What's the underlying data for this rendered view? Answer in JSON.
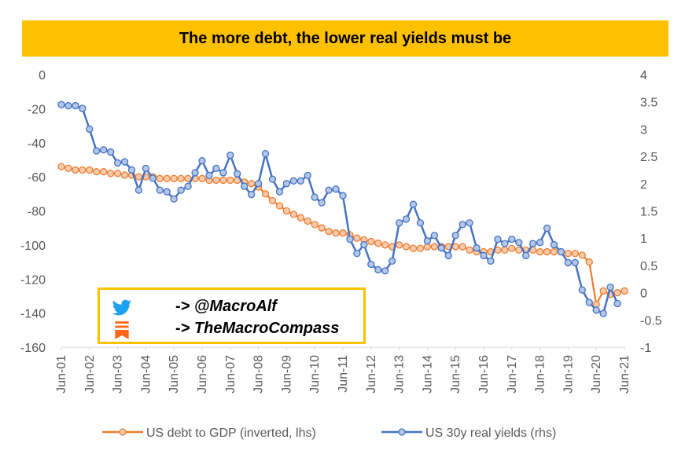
{
  "title": "The more debt, the lower real yields must be",
  "social": {
    "twitter_handle": "-> @MacroAlf",
    "substack_handle": "-> TheMacroCompass",
    "twitter_icon": "twitter-bird-icon",
    "substack_icon": "substack-bookmark-icon",
    "twitter_color": "#1DA1F2",
    "substack_color": "#FF6719"
  },
  "chart_data": {
    "type": "line",
    "title": "The more debt, the lower real yields must be",
    "x_tick_labels": [
      "Jun-01",
      "Jun-02",
      "Jun-03",
      "Jun-04",
      "Jun-05",
      "Jun-06",
      "Jun-07",
      "Jun-08",
      "Jun-09",
      "Jun-10",
      "Jun-11",
      "Jun-12",
      "Jun-13",
      "Jun-14",
      "Jun-15",
      "Jun-16",
      "Jun-17",
      "Jun-18",
      "Jun-19",
      "Jun-20",
      "Jun-21"
    ],
    "y_left": {
      "min": -160,
      "max": 0,
      "step": 20,
      "ticks": [
        "0",
        "-20",
        "-40",
        "-60",
        "-80",
        "-100",
        "-120",
        "-140",
        "-160"
      ]
    },
    "y_right": {
      "min": -1,
      "max": 4,
      "step": 0.5,
      "ticks": [
        "4",
        "3.5",
        "3",
        "2.5",
        "2",
        "1.5",
        "1",
        "0.5",
        "0",
        "-0.5",
        "-1"
      ]
    },
    "legend_position": "bottom",
    "grid": false,
    "series": [
      {
        "name": "US debt to GDP (inverted, lhs)",
        "axis": "left",
        "color": "#ED7D31",
        "marker_fill": "#F8CBAD",
        "points": [
          [
            "2001-06",
            -54
          ],
          [
            "2001-09",
            -55
          ],
          [
            "2001-12",
            -56
          ],
          [
            "2002-03",
            -56
          ],
          [
            "2002-06",
            -56
          ],
          [
            "2002-09",
            -57
          ],
          [
            "2002-12",
            -57
          ],
          [
            "2003-03",
            -58
          ],
          [
            "2003-06",
            -58
          ],
          [
            "2003-09",
            -59
          ],
          [
            "2003-12",
            -59
          ],
          [
            "2004-03",
            -60
          ],
          [
            "2004-06",
            -60
          ],
          [
            "2004-09",
            -60
          ],
          [
            "2004-12",
            -61
          ],
          [
            "2005-03",
            -61
          ],
          [
            "2005-06",
            -61
          ],
          [
            "2005-09",
            -61
          ],
          [
            "2005-12",
            -61
          ],
          [
            "2006-03",
            -61
          ],
          [
            "2006-06",
            -61
          ],
          [
            "2006-09",
            -62
          ],
          [
            "2006-12",
            -62
          ],
          [
            "2007-03",
            -62
          ],
          [
            "2007-06",
            -62
          ],
          [
            "2007-09",
            -62
          ],
          [
            "2007-12",
            -63
          ],
          [
            "2008-03",
            -64
          ],
          [
            "2008-06",
            -66
          ],
          [
            "2008-09",
            -70
          ],
          [
            "2008-12",
            -74
          ],
          [
            "2009-03",
            -77
          ],
          [
            "2009-06",
            -80
          ],
          [
            "2009-09",
            -82
          ],
          [
            "2009-12",
            -84
          ],
          [
            "2010-03",
            -86
          ],
          [
            "2010-06",
            -88
          ],
          [
            "2010-09",
            -90
          ],
          [
            "2010-12",
            -92
          ],
          [
            "2011-03",
            -93
          ],
          [
            "2011-06",
            -93
          ],
          [
            "2011-09",
            -94
          ],
          [
            "2011-12",
            -96
          ],
          [
            "2012-03",
            -97
          ],
          [
            "2012-06",
            -98
          ],
          [
            "2012-09",
            -99
          ],
          [
            "2012-12",
            -100
          ],
          [
            "2013-03",
            -101
          ],
          [
            "2013-06",
            -100
          ],
          [
            "2013-09",
            -101
          ],
          [
            "2013-12",
            -102
          ],
          [
            "2014-03",
            -102
          ],
          [
            "2014-06",
            -101
          ],
          [
            "2014-09",
            -101
          ],
          [
            "2014-12",
            -101
          ],
          [
            "2015-03",
            -101
          ],
          [
            "2015-06",
            -101
          ],
          [
            "2015-09",
            -101
          ],
          [
            "2015-12",
            -103
          ],
          [
            "2016-03",
            -104
          ],
          [
            "2016-06",
            -104
          ],
          [
            "2016-09",
            -104
          ],
          [
            "2016-12",
            -103
          ],
          [
            "2017-03",
            -103
          ],
          [
            "2017-06",
            -102
          ],
          [
            "2017-09",
            -103
          ],
          [
            "2017-12",
            -103
          ],
          [
            "2018-03",
            -103
          ],
          [
            "2018-06",
            -104
          ],
          [
            "2018-09",
            -104
          ],
          [
            "2018-12",
            -104
          ],
          [
            "2019-03",
            -104
          ],
          [
            "2019-06",
            -105
          ],
          [
            "2019-09",
            -105
          ],
          [
            "2019-12",
            -106
          ],
          [
            "2020-03",
            -110
          ],
          [
            "2020-06",
            -135
          ],
          [
            "2020-09",
            -127
          ],
          [
            "2020-12",
            -129
          ],
          [
            "2021-03",
            -128
          ],
          [
            "2021-06",
            -127
          ]
        ]
      },
      {
        "name": "US 30y real yields (rhs)",
        "axis": "right",
        "color": "#4472C4",
        "marker_fill": "#B4C7E7",
        "points": [
          [
            "2001-06",
            3.45
          ],
          [
            "2001-09",
            3.43
          ],
          [
            "2001-12",
            3.43
          ],
          [
            "2002-03",
            3.38
          ],
          [
            "2002-06",
            3.0
          ],
          [
            "2002-09",
            2.6
          ],
          [
            "2002-12",
            2.62
          ],
          [
            "2003-03",
            2.58
          ],
          [
            "2003-06",
            2.38
          ],
          [
            "2003-09",
            2.4
          ],
          [
            "2003-12",
            2.25
          ],
          [
            "2004-03",
            1.88
          ],
          [
            "2004-06",
            2.28
          ],
          [
            "2004-09",
            2.1
          ],
          [
            "2004-12",
            1.88
          ],
          [
            "2005-03",
            1.85
          ],
          [
            "2005-06",
            1.72
          ],
          [
            "2005-09",
            1.88
          ],
          [
            "2005-12",
            1.95
          ],
          [
            "2006-03",
            2.2
          ],
          [
            "2006-06",
            2.42
          ],
          [
            "2006-09",
            2.15
          ],
          [
            "2006-12",
            2.28
          ],
          [
            "2007-03",
            2.2
          ],
          [
            "2007-06",
            2.52
          ],
          [
            "2007-09",
            2.18
          ],
          [
            "2007-12",
            1.95
          ],
          [
            "2008-03",
            1.8
          ],
          [
            "2008-06",
            2.0
          ],
          [
            "2008-09",
            2.55
          ],
          [
            "2008-12",
            2.08
          ],
          [
            "2009-03",
            1.85
          ],
          [
            "2009-06",
            2.0
          ],
          [
            "2009-09",
            2.05
          ],
          [
            "2009-12",
            2.05
          ],
          [
            "2010-03",
            2.15
          ],
          [
            "2010-06",
            1.75
          ],
          [
            "2010-09",
            1.65
          ],
          [
            "2010-12",
            1.88
          ],
          [
            "2011-03",
            1.9
          ],
          [
            "2011-06",
            1.78
          ],
          [
            "2011-09",
            0.98
          ],
          [
            "2011-12",
            0.72
          ],
          [
            "2012-03",
            0.88
          ],
          [
            "2012-06",
            0.52
          ],
          [
            "2012-09",
            0.42
          ],
          [
            "2012-12",
            0.4
          ],
          [
            "2013-03",
            0.58
          ],
          [
            "2013-06",
            1.28
          ],
          [
            "2013-09",
            1.35
          ],
          [
            "2013-12",
            1.62
          ],
          [
            "2014-03",
            1.28
          ],
          [
            "2014-06",
            0.95
          ],
          [
            "2014-09",
            1.05
          ],
          [
            "2014-12",
            0.82
          ],
          [
            "2014-12",
            0.82
          ],
          [
            "2015-03",
            0.68
          ],
          [
            "2015-06",
            1.05
          ],
          [
            "2015-09",
            1.25
          ],
          [
            "2015-12",
            1.28
          ],
          [
            "2016-03",
            0.82
          ],
          [
            "2016-06",
            0.68
          ],
          [
            "2016-09",
            0.58
          ],
          [
            "2016-12",
            0.98
          ],
          [
            "2017-03",
            0.9
          ],
          [
            "2017-06",
            0.98
          ],
          [
            "2017-09",
            0.92
          ],
          [
            "2017-12",
            0.68
          ],
          [
            "2018-03",
            0.9
          ],
          [
            "2018-06",
            0.92
          ],
          [
            "2018-09",
            1.18
          ],
          [
            "2018-12",
            0.88
          ],
          [
            "2019-03",
            0.75
          ],
          [
            "2019-06",
            0.55
          ],
          [
            "2019-09",
            0.55
          ],
          [
            "2019-12",
            0.05
          ],
          [
            "2020-03",
            -0.18
          ],
          [
            "2020-06",
            -0.32
          ],
          [
            "2020-09",
            -0.38
          ],
          [
            "2020-12",
            0.1
          ],
          [
            "2021-03",
            -0.2
          ]
        ]
      }
    ]
  }
}
